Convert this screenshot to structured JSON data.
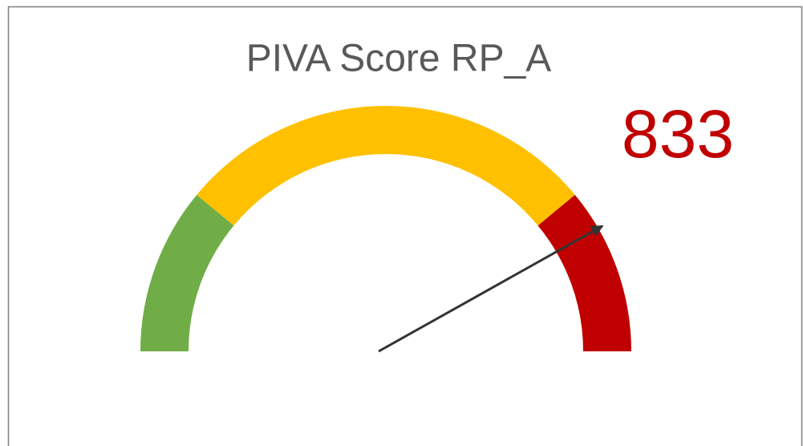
{
  "chart_data": {
    "type": "gauge",
    "title": "PIVA Score RP_A",
    "value": 833,
    "value_color": "#c00000",
    "ylim": [
      0,
      1000
    ],
    "bands": [
      {
        "from": 0,
        "to": 220,
        "color": "#70ad47"
      },
      {
        "from": 220,
        "to": 780,
        "color": "#ffc000"
      },
      {
        "from": 780,
        "to": 1000,
        "color": "#c00000"
      }
    ],
    "needle_color": "#333333"
  }
}
